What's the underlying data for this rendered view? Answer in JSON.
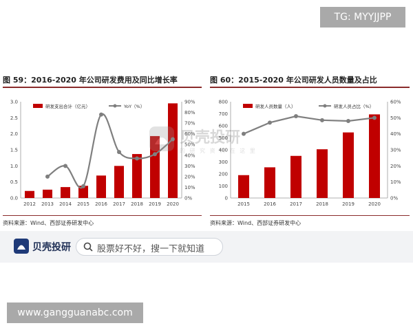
{
  "overlay": {
    "tg_label": "TG: MYYJJPP",
    "url_label": "www.gangguanabc.com"
  },
  "watermark": {
    "logo_text": "贝壳投研",
    "sub_text": "的 研 究 资 料 在 这 里"
  },
  "brand_bar": {
    "name": "贝壳投研",
    "search_placeholder": "股票好不好，搜一下就知道"
  },
  "colors": {
    "bar": "#c00000",
    "line": "#7f7f7f",
    "rule": "#8a2a2a"
  },
  "chart_data": [
    {
      "type": "bar",
      "title": "图 59：2016-2020 年公司研发费用及同比增长率",
      "source": "资料来源：Wind、西部证券研发中心",
      "categories": [
        "2012",
        "2013",
        "2014",
        "2015",
        "2016",
        "2017",
        "2018",
        "2019",
        "2020"
      ],
      "series": [
        {
          "name": "研发支出合计（亿元）",
          "kind": "bar",
          "axis": "left",
          "values": [
            0.22,
            0.26,
            0.34,
            0.38,
            0.7,
            1.0,
            1.37,
            1.93,
            2.95
          ]
        },
        {
          "name": "YoY（%）",
          "kind": "line",
          "axis": "right",
          "values": [
            null,
            20,
            30,
            11,
            78,
            43,
            37,
            41,
            55
          ]
        }
      ],
      "ylim_left": [
        0,
        3.0
      ],
      "yticks_left": [
        "0.0",
        "0.5",
        "1.0",
        "1.5",
        "2.0",
        "2.5",
        "3.0"
      ],
      "ylim_right": [
        0,
        90
      ],
      "yticks_right": [
        "0%",
        "10%",
        "20%",
        "30%",
        "40%",
        "50%",
        "60%",
        "70%",
        "80%",
        "90%"
      ],
      "legend": "top",
      "grid": false
    },
    {
      "type": "bar",
      "title": "图 60：2015-2020 年公司研发人员数量及占比",
      "source": "资料来源：Wind、西部证券研发中心",
      "categories": [
        "2015",
        "2016",
        "2017",
        "2018",
        "2019",
        "2020"
      ],
      "series": [
        {
          "name": "研发人员数量（人）",
          "kind": "bar",
          "axis": "left",
          "values": [
            190,
            255,
            350,
            405,
            545,
            695
          ]
        },
        {
          "name": "研发人员占比（%）",
          "kind": "line",
          "axis": "right",
          "values": [
            40,
            47,
            51,
            48.5,
            48,
            50
          ]
        }
      ],
      "ylim_left": [
        0,
        800
      ],
      "yticks_left": [
        "0",
        "100",
        "200",
        "300",
        "400",
        "500",
        "600",
        "700",
        "800"
      ],
      "ylim_right": [
        0,
        60
      ],
      "yticks_right": [
        "0%",
        "10%",
        "20%",
        "30%",
        "40%",
        "50%",
        "60%"
      ],
      "legend": "top",
      "grid": false
    }
  ]
}
